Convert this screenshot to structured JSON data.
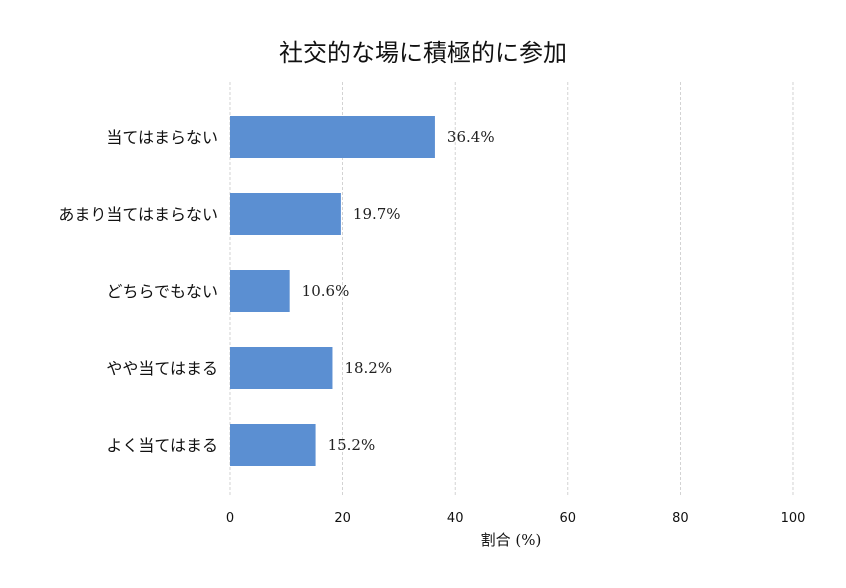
{
  "chart_data": {
    "type": "bar",
    "orientation": "horizontal",
    "title": "社交的な場に積極的に参加",
    "xlabel": "割合 (%)",
    "ylabel": "",
    "xlim": [
      0,
      100
    ],
    "x_ticks": [
      "0",
      "20",
      "40",
      "60",
      "80",
      "100"
    ],
    "grid": true,
    "categories": [
      "当てはまらない",
      "あまり当てはまらない",
      "どちらでもない",
      "やや当てはまる",
      "よく当てはまる"
    ],
    "values": [
      36.4,
      19.7,
      10.6,
      18.2,
      15.2
    ],
    "value_labels": [
      "36.4%",
      "19.7%",
      "10.6%",
      "18.2%",
      "15.2%"
    ],
    "bar_color": "#5b8fd2"
  }
}
